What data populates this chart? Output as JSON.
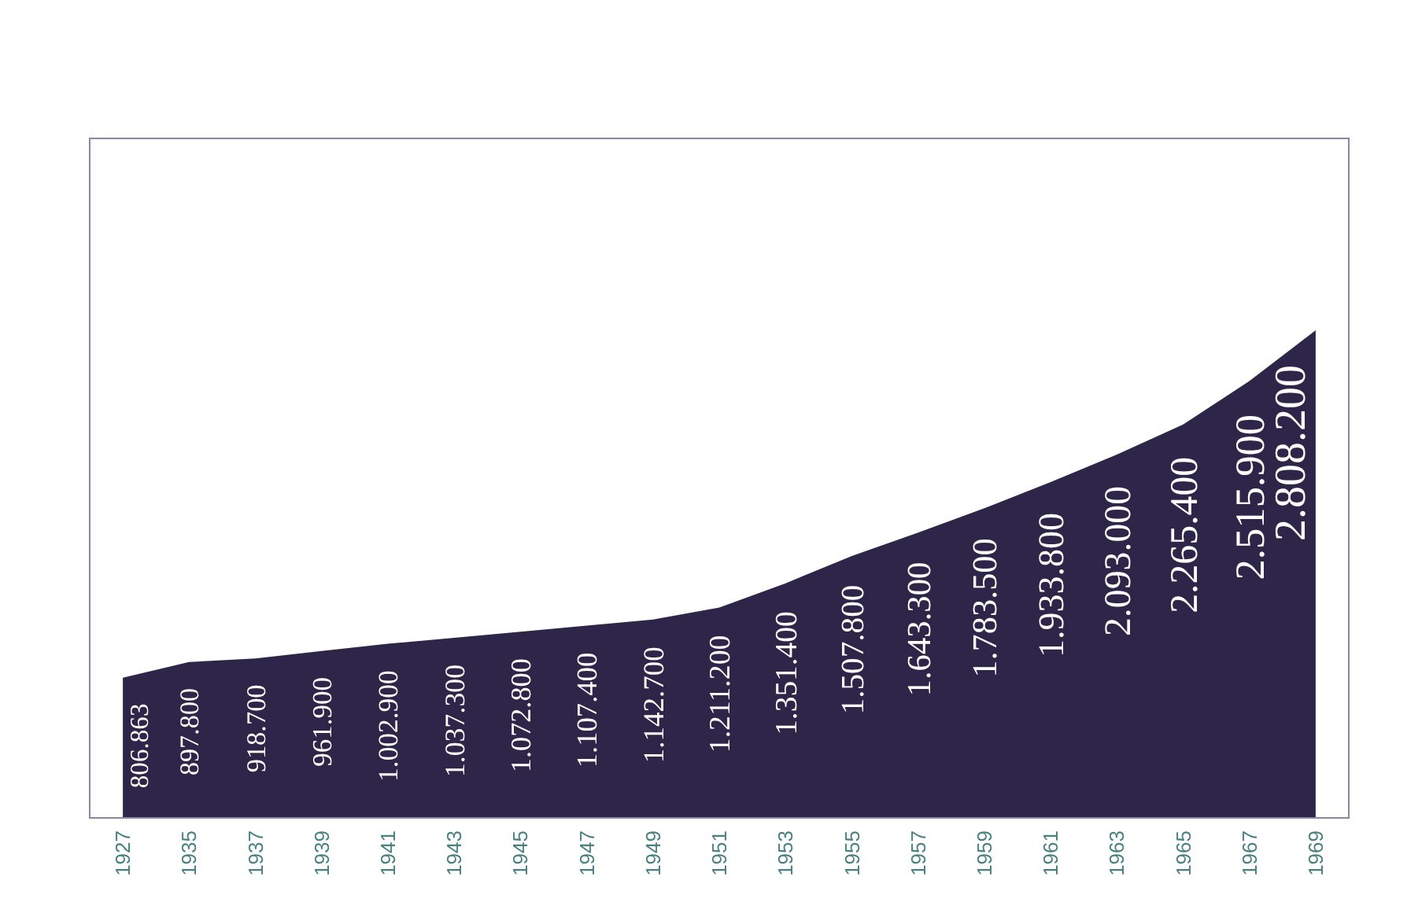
{
  "chart_data": {
    "type": "area",
    "categories": [
      "1927",
      "1935",
      "1937",
      "1939",
      "1941",
      "1943",
      "1945",
      "1947",
      "1949",
      "1951",
      "1953",
      "1955",
      "1957",
      "1959",
      "1961",
      "1963",
      "1965",
      "1967",
      "1969"
    ],
    "values": [
      806863,
      897800,
      918700,
      961900,
      1002900,
      1037300,
      1072800,
      1107400,
      1142700,
      1211200,
      1351400,
      1507800,
      1643300,
      1783500,
      1933800,
      2093000,
      2265400,
      2515900,
      2808200
    ],
    "value_labels": [
      "806.863",
      "897.800",
      "918.700",
      "961.900",
      "1.002.900",
      "1.037.300",
      "1.072.800",
      "1.107.400",
      "1.142.700",
      "1.211.200",
      "1.351.400",
      "1.507.800",
      "1.643.300",
      "1.783.500",
      "1.933.800",
      "2.093.000",
      "2.265.400",
      "2.515.900",
      "2.808.200"
    ],
    "color": "#2e2648"
  }
}
